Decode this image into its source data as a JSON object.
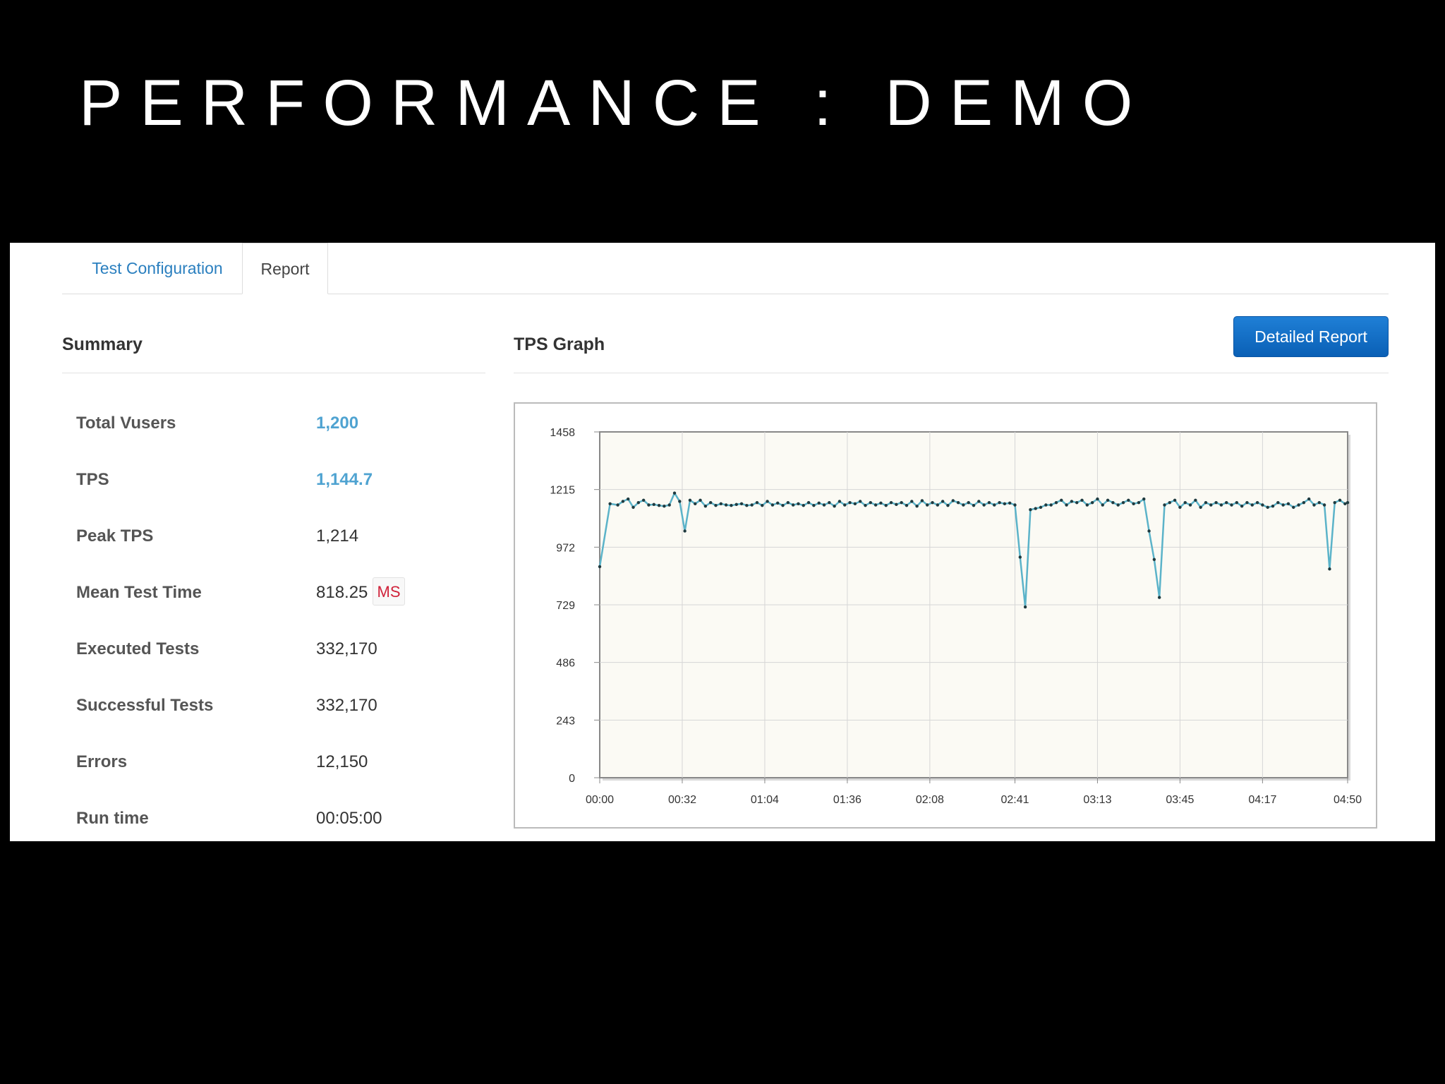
{
  "slide": {
    "title": "PERFORMANCE : DEMO"
  },
  "tabs": [
    {
      "label": "Test Configuration",
      "active": false
    },
    {
      "label": "Report",
      "active": true
    }
  ],
  "summary": {
    "title": "Summary",
    "stats": [
      {
        "label": "Total Vusers",
        "value": "1,200"
      },
      {
        "label": "TPS",
        "value": "1,144.7"
      },
      {
        "label": "Peak TPS",
        "value": "1,214"
      },
      {
        "label": "Mean Test Time",
        "value": "818.25",
        "unit": "MS"
      },
      {
        "label": "Executed Tests",
        "value": "332,170"
      },
      {
        "label": "Successful Tests",
        "value": "332,170"
      },
      {
        "label": "Errors",
        "value": "12,150"
      },
      {
        "label": "Run time",
        "value": "00:05:00"
      }
    ]
  },
  "graph": {
    "title": "TPS Graph",
    "detailed_report_label": "Detailed Report"
  },
  "colors": {
    "accent": "#4fa3d1",
    "link": "#2a7fbf",
    "button": "#1a72c9",
    "unit_badge": "#d0223a",
    "plot_background": "#fbfaf4",
    "line": "#5bb3c9"
  },
  "chart_data": {
    "type": "line",
    "title": "",
    "xlabel": "",
    "ylabel": "",
    "ylim": [
      0,
      1458
    ],
    "xlim": [
      0,
      290
    ],
    "grid": true,
    "y_ticks": [
      0,
      243,
      486,
      729,
      972,
      1215,
      1458
    ],
    "y_tick_labels": [
      "0",
      "243",
      "486",
      "729",
      "972",
      "1215",
      "1458"
    ],
    "x_ticks": [
      0,
      32,
      64,
      96,
      128,
      161,
      193,
      225,
      257,
      290
    ],
    "x_tick_labels": [
      "00:00",
      "00:32",
      "01:04",
      "01:36",
      "02:08",
      "02:41",
      "03:13",
      "03:45",
      "04:17",
      "04:50"
    ],
    "series": [
      {
        "x": [
          0,
          4,
          7,
          9,
          11,
          13,
          15,
          17,
          19,
          21,
          23,
          25,
          27,
          29,
          31,
          33,
          35,
          37,
          39,
          41,
          43,
          45,
          47,
          49,
          51,
          53,
          55,
          57,
          59,
          61,
          63,
          65,
          67,
          69,
          71,
          73,
          75,
          77,
          79,
          81,
          83,
          85,
          87,
          89,
          91,
          93,
          95,
          97,
          99,
          101,
          103,
          105,
          107,
          109,
          111,
          113,
          115,
          117,
          119,
          121,
          123,
          125,
          127,
          129,
          131,
          133,
          135,
          137,
          139,
          141,
          143,
          145,
          147,
          149,
          151,
          153,
          155,
          157,
          159,
          161,
          163,
          165,
          167,
          169,
          171,
          173,
          175,
          177,
          179,
          181,
          183,
          185,
          187,
          189,
          191,
          193,
          195,
          197,
          199,
          201,
          203,
          205,
          207,
          209,
          211,
          213,
          215,
          217,
          219,
          221,
          223,
          225,
          227,
          229,
          231,
          233,
          235,
          237,
          239,
          241,
          243,
          245,
          247,
          249,
          251,
          253,
          255,
          257,
          259,
          261,
          263,
          265,
          267,
          269,
          271,
          273,
          275,
          277,
          279,
          281,
          283,
          285,
          287,
          289,
          290
        ],
        "y": [
          890,
          1155,
          1150,
          1165,
          1175,
          1140,
          1160,
          1170,
          1150,
          1152,
          1148,
          1145,
          1150,
          1200,
          1165,
          1040,
          1170,
          1155,
          1170,
          1145,
          1160,
          1148,
          1155,
          1150,
          1148,
          1152,
          1155,
          1148,
          1150,
          1160,
          1148,
          1165,
          1150,
          1158,
          1148,
          1160,
          1150,
          1155,
          1148,
          1160,
          1148,
          1158,
          1150,
          1160,
          1145,
          1165,
          1150,
          1160,
          1155,
          1165,
          1148,
          1160,
          1150,
          1158,
          1148,
          1160,
          1152,
          1160,
          1148,
          1165,
          1145,
          1168,
          1150,
          1160,
          1150,
          1165,
          1148,
          1168,
          1160,
          1150,
          1160,
          1148,
          1165,
          1150,
          1160,
          1150,
          1160,
          1155,
          1158,
          1150,
          930,
          720,
          1130,
          1135,
          1140,
          1150,
          1150,
          1160,
          1170,
          1150,
          1165,
          1160,
          1170,
          1150,
          1160,
          1175,
          1150,
          1170,
          1160,
          1150,
          1160,
          1170,
          1155,
          1160,
          1175,
          1040,
          920,
          760,
          1150,
          1160,
          1170,
          1140,
          1160,
          1150,
          1170,
          1140,
          1160,
          1150,
          1160,
          1150,
          1160,
          1150,
          1160,
          1145,
          1160,
          1150,
          1160,
          1150,
          1140,
          1145,
          1160,
          1150,
          1155,
          1140,
          1150,
          1160,
          1175,
          1150,
          1160,
          1150,
          880,
          1160,
          1170,
          1155,
          1160
        ]
      }
    ]
  }
}
